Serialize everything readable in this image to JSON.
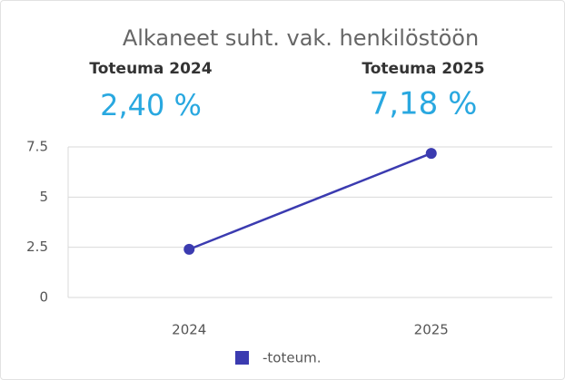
{
  "title": "Alkaneet suht. vak. henkilöstöön",
  "kpis": [
    {
      "label": "Toteuma 2024",
      "value": "2,40 %"
    },
    {
      "label": "Toteuma 2025",
      "value": "7,18 %"
    }
  ],
  "chart_data": {
    "type": "line",
    "categories": [
      "2024",
      "2025"
    ],
    "series": [
      {
        "name": "-toteum.",
        "color": "#3b3bb0",
        "values": [
          2.4,
          7.18
        ]
      }
    ],
    "ylim": [
      0,
      7.5
    ],
    "yticks": [
      0,
      2.5,
      5,
      7.5
    ],
    "grid": true,
    "legend": "bottom"
  }
}
